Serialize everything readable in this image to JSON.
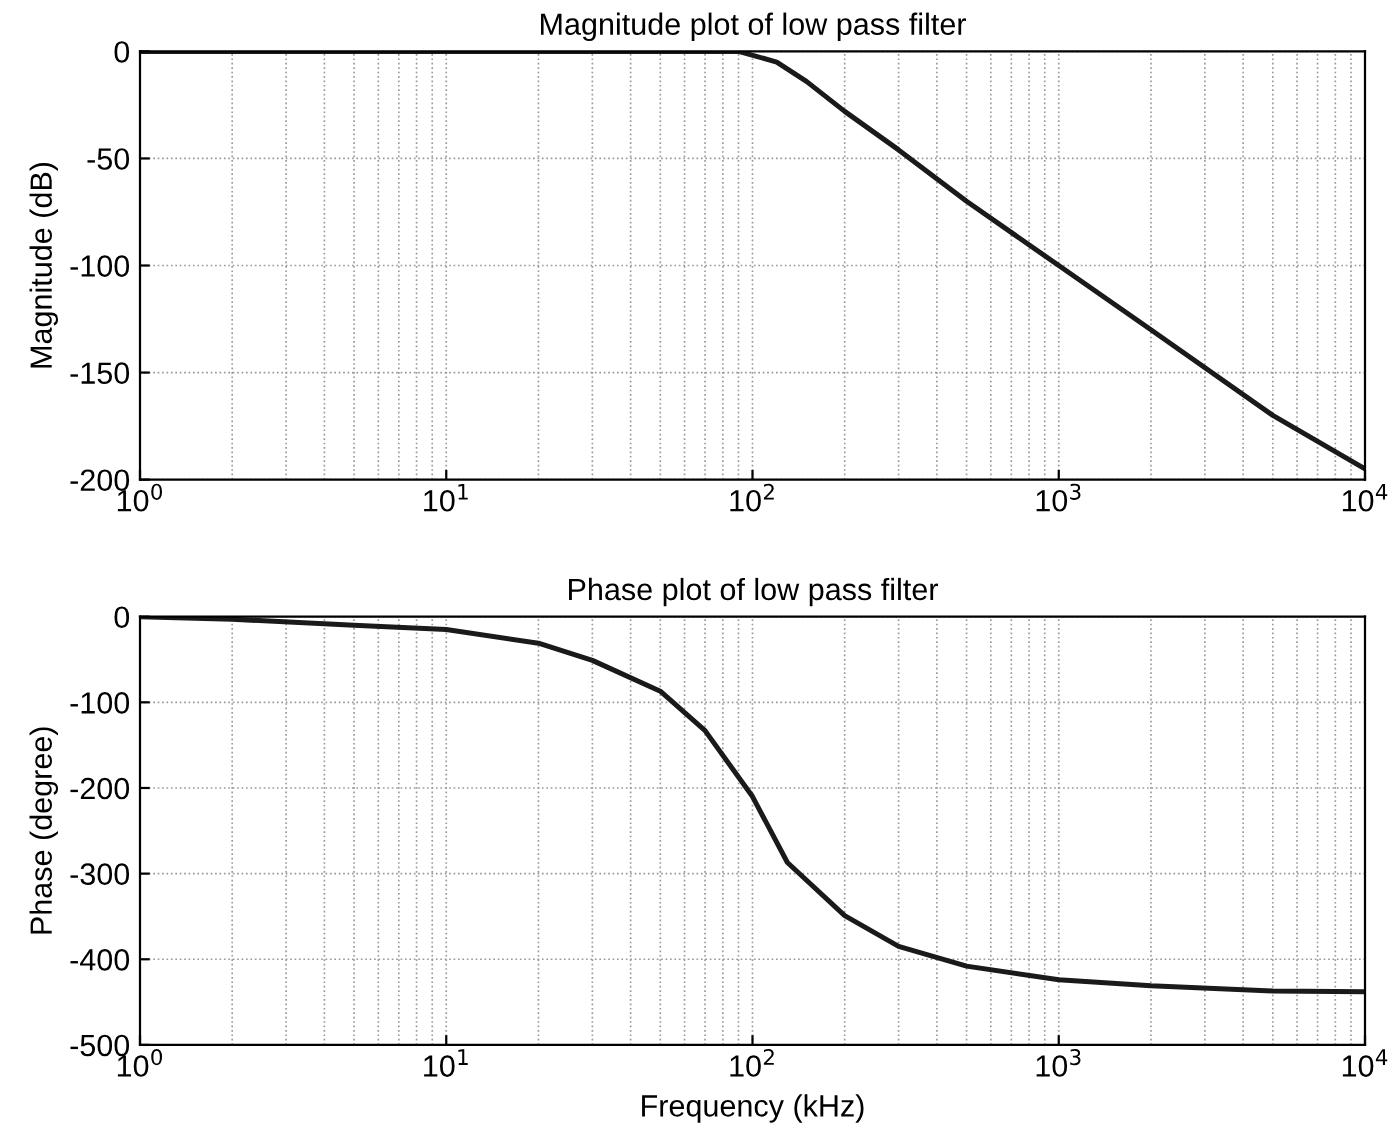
{
  "chart_data": [
    {
      "type": "line",
      "title": "Magnitude plot of low pass filter",
      "ylabel": "Magnitude (dB)",
      "log": "x",
      "grid": true,
      "legend": false,
      "marker": "none",
      "line_style": "solid",
      "xlim": [
        1,
        10000
      ],
      "xticks": [
        {
          "value": 1,
          "label": "10$^{0}$"
        },
        {
          "value": 10,
          "label": "10$^{1}$"
        },
        {
          "value": 100,
          "label": "10$^{2}$"
        },
        {
          "value": 1000,
          "label": "10$^{3}$"
        },
        {
          "value": 10000,
          "label": "10$^{4}$"
        }
      ],
      "ylim": [
        -200,
        0
      ],
      "yticks": [
        -200,
        -150,
        -100,
        -50,
        0
      ],
      "x": [
        1,
        10,
        50,
        90,
        120,
        150,
        200,
        300,
        500,
        1000,
        2000,
        5000,
        10000
      ],
      "series": [
        {
          "color": "#1a1a1a",
          "values": [
            0,
            0,
            0,
            0,
            -5,
            -14,
            -28,
            -46,
            -70,
            -100,
            -130,
            -170,
            -195
          ]
        }
      ]
    },
    {
      "type": "line",
      "title": "Phase plot of low pass filter",
      "xlabel": "Frequency (kHz)",
      "ylabel": "Phase (degree)",
      "log": "x",
      "grid": true,
      "legend": false,
      "marker": "none",
      "line_style": "solid",
      "xlim": [
        1,
        10000
      ],
      "xticks": [
        {
          "value": 1,
          "label": "10$^{0}$"
        },
        {
          "value": 10,
          "label": "10$^{1}$"
        },
        {
          "value": 100,
          "label": "10$^{2}$"
        },
        {
          "value": 1000,
          "label": "10$^{3}$"
        },
        {
          "value": 10000,
          "label": "10$^{4}$"
        }
      ],
      "ylim": [
        -500,
        0
      ],
      "yticks": [
        -500,
        -400,
        -300,
        -200,
        -100,
        0
      ],
      "x": [
        1,
        2,
        5,
        10,
        20,
        30,
        50,
        70,
        100,
        130,
        200,
        300,
        500,
        1000,
        2000,
        5000,
        10000
      ],
      "series": [
        {
          "color": "#1a1a1a",
          "values": [
            0,
            -3,
            -10,
            -15,
            -31,
            -51,
            -87,
            -133,
            -210,
            -287,
            -349,
            -385,
            -408,
            -424,
            -431,
            -437,
            -438
          ]
        }
      ]
    }
  ]
}
